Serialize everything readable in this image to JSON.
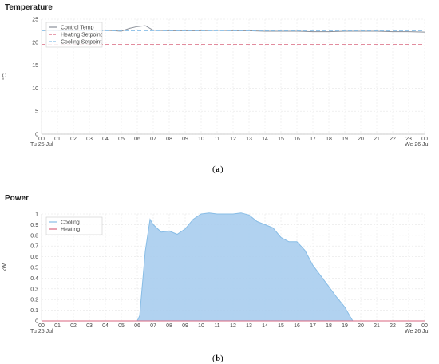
{
  "captions": {
    "a_open": "(",
    "a_letter": "a",
    "a_close": ")",
    "b_open": "(",
    "b_letter": "b",
    "b_close": ")"
  },
  "chart_data": [
    {
      "type": "line",
      "title": "Temperature",
      "ylabel": "°C",
      "ylim": [
        0,
        25
      ],
      "yticks": [
        0,
        5,
        10,
        15,
        20,
        25
      ],
      "x_hours": [
        "00",
        "01",
        "02",
        "03",
        "04",
        "05",
        "06",
        "07",
        "08",
        "09",
        "10",
        "11",
        "12",
        "13",
        "14",
        "15",
        "16",
        "17",
        "18",
        "19",
        "20",
        "21",
        "22",
        "23",
        "00"
      ],
      "x_start_label": "Tu 25 Jul",
      "x_end_label": "We 26 Jul",
      "grid": true,
      "legend": "top-left",
      "series": [
        {
          "name": "Control Temp",
          "color": "#8a8f98",
          "dash": "solid",
          "x": [
            0,
            1,
            2,
            3,
            4,
            5,
            5.5,
            6,
            6.5,
            7,
            8,
            9,
            10,
            11,
            12,
            13,
            14,
            15,
            16,
            17,
            18,
            19,
            20,
            21,
            22,
            23,
            24
          ],
          "y": [
            22.6,
            22.5,
            22.5,
            22.6,
            22.6,
            22.4,
            23.0,
            23.4,
            23.6,
            22.6,
            22.5,
            22.5,
            22.5,
            22.6,
            22.5,
            22.5,
            22.4,
            22.4,
            22.4,
            22.3,
            22.3,
            22.4,
            22.4,
            22.4,
            22.3,
            22.3,
            22.2
          ]
        },
        {
          "name": "Heating Setpoint",
          "color": "#d9667f",
          "dash": "dashed",
          "x": [
            0,
            24
          ],
          "y": [
            19.5,
            19.5
          ]
        },
        {
          "name": "Cooling Setpoint",
          "color": "#88bde6",
          "dash": "dashed",
          "x": [
            0,
            24
          ],
          "y": [
            22.5,
            22.5
          ]
        }
      ]
    },
    {
      "type": "area",
      "title": "Power",
      "ylabel": "kW",
      "ylim": [
        0,
        1
      ],
      "yticks": [
        0,
        0.1,
        0.2,
        0.3,
        0.4,
        0.5,
        0.6,
        0.7,
        0.8,
        0.9,
        1
      ],
      "ytick_labels": [
        "0",
        "0.1",
        "0.2",
        "0.3",
        "0.4",
        "0.5",
        "0.6",
        "0.7",
        "0.8",
        "0.9",
        "1"
      ],
      "x_hours": [
        "00",
        "01",
        "02",
        "03",
        "04",
        "05",
        "06",
        "07",
        "08",
        "09",
        "10",
        "11",
        "12",
        "13",
        "14",
        "15",
        "16",
        "17",
        "18",
        "19",
        "20",
        "21",
        "22",
        "23",
        "00"
      ],
      "x_start_label": "Tu 25 Jul",
      "x_end_label": "We 26 Jul",
      "grid": true,
      "legend": "top-left",
      "series": [
        {
          "name": "Cooling",
          "color": "#88bde6",
          "fill": "#a8cdee",
          "x": [
            0,
            6,
            6.15,
            6.5,
            6.8,
            7.0,
            7.5,
            8,
            8.5,
            9,
            9.5,
            10,
            10.5,
            11,
            11.5,
            12,
            12.5,
            13,
            13.5,
            14,
            14.5,
            15,
            15.5,
            16,
            16.5,
            17,
            17.5,
            18,
            18.5,
            19,
            19.3,
            19.5,
            24
          ],
          "y": [
            0,
            0,
            0.05,
            0.65,
            0.95,
            0.9,
            0.83,
            0.84,
            0.81,
            0.86,
            0.95,
            1.0,
            1.01,
            1.0,
            1.0,
            1.0,
            1.01,
            0.99,
            0.93,
            0.9,
            0.87,
            0.78,
            0.74,
            0.74,
            0.66,
            0.52,
            0.42,
            0.32,
            0.22,
            0.13,
            0.05,
            0,
            0
          ]
        },
        {
          "name": "Heating",
          "color": "#d9667f",
          "fill": "none",
          "x": [
            0,
            24
          ],
          "y": [
            0,
            0
          ]
        }
      ]
    }
  ]
}
